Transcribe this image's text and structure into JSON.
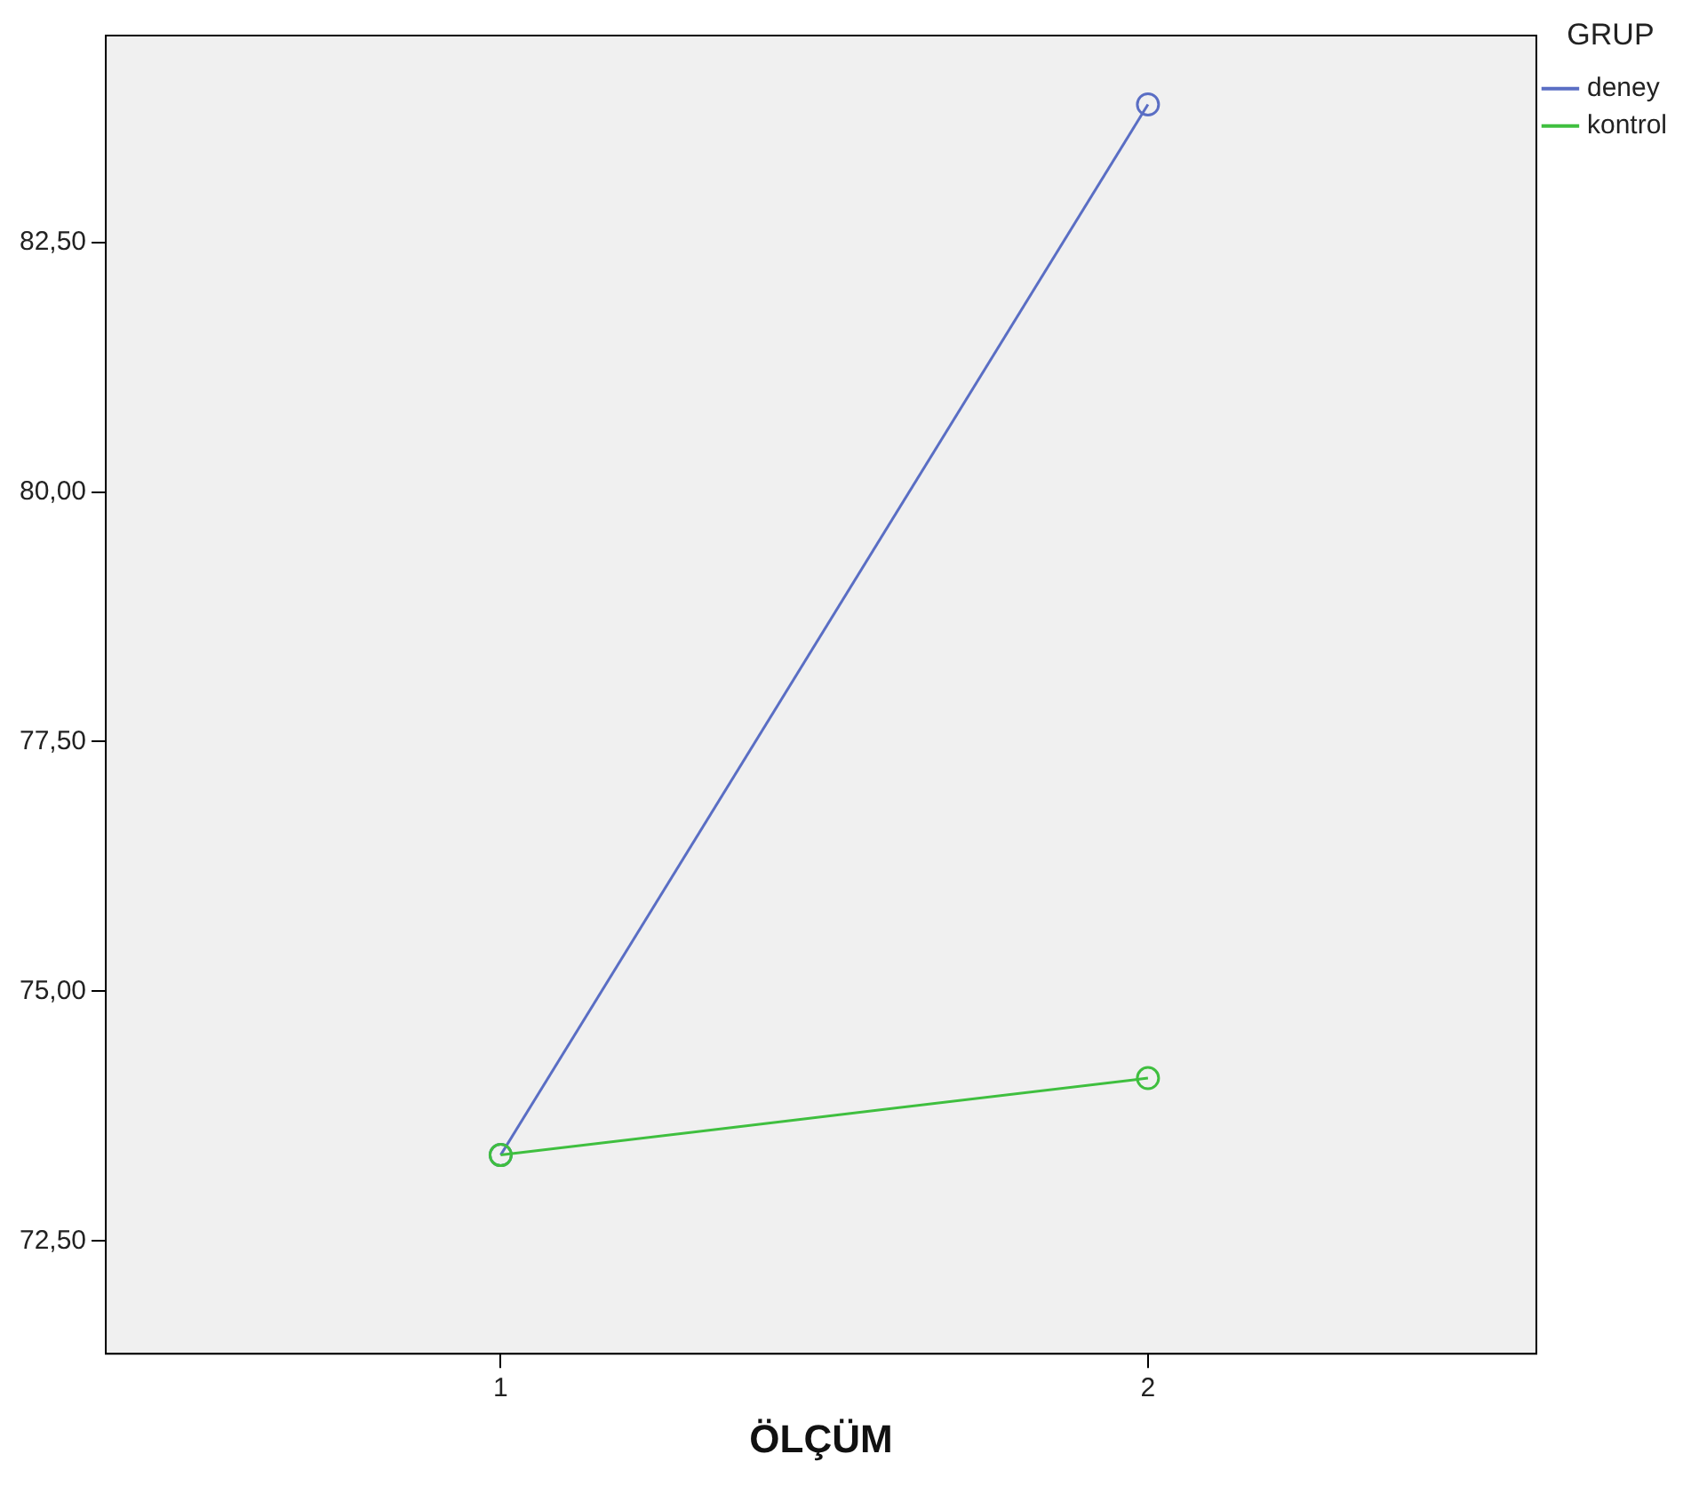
{
  "chart_data": {
    "type": "line",
    "xlabel": "ÖLÇÜM",
    "legend_title": "GRUP",
    "x": [
      1,
      2
    ],
    "series": [
      {
        "name": "deney",
        "color": "#5a6ec4",
        "values": [
          73.36,
          83.88
        ]
      },
      {
        "name": "kontrol",
        "color": "#3fbf3f",
        "values": [
          73.36,
          74.13
        ]
      }
    ],
    "xlim": [
      0.39,
      2.6
    ],
    "xticks": [
      1,
      2
    ],
    "ylim": [
      71.37,
      84.57
    ],
    "yticks": [
      {
        "value": 72.5,
        "label": "72,50"
      },
      {
        "value": 75,
        "label": "75,00"
      },
      {
        "value": 77.5,
        "label": "77,50"
      },
      {
        "value": 80,
        "label": "80,00"
      },
      {
        "value": 82.5,
        "label": "82,50"
      }
    ],
    "grid": false,
    "legend": "top right",
    "marker": "circle",
    "line_style": "solid"
  }
}
